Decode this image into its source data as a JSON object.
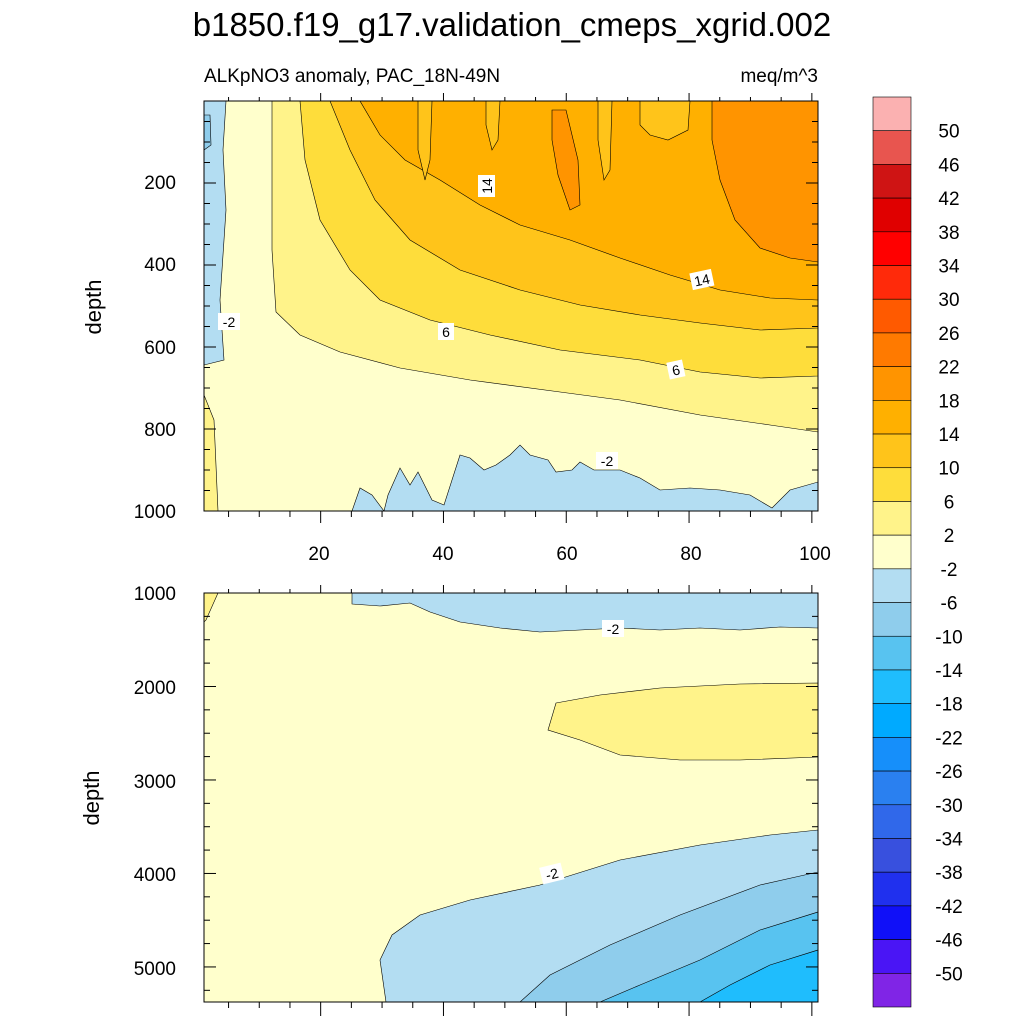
{
  "chart_data": {
    "type": "contour",
    "title": "b1850.f19_g17.validation_cmeps_xgrid.002",
    "subtitle_left": "ALKpNO3 anomaly, PAC_18N-49N",
    "subtitle_right": "meq/m^3",
    "ylabel": "depth",
    "top_panel": {
      "ylim": [
        1000,
        0
      ],
      "xlim": [
        1,
        101
      ],
      "y_ticks": [
        "200",
        "400",
        "600",
        "800",
        "1000"
      ],
      "x_ticks": [
        "20",
        "40",
        "60",
        "80",
        "100"
      ],
      "contour_labels": [
        "14",
        "14",
        "-2",
        "6",
        "6",
        "-2"
      ]
    },
    "bottom_panel": {
      "ylim": [
        5375,
        1000
      ],
      "y_ticks": [
        "1000",
        "2000",
        "3000",
        "4000",
        "5000"
      ],
      "contour_labels": [
        "-2",
        "-2"
      ]
    },
    "colorbar": {
      "labels": [
        "50",
        "46",
        "42",
        "38",
        "34",
        "30",
        "26",
        "22",
        "18",
        "14",
        "10",
        "6",
        "2",
        "-2",
        "-6",
        "-10",
        "-14",
        "-18",
        "-22",
        "-26",
        "-30",
        "-34",
        "-38",
        "-42",
        "-46",
        "-50"
      ],
      "colors": [
        "#fbb1b1",
        "#e8554f",
        "#cf1414",
        "#e00000",
        "#ff0000",
        "#ff2a0a",
        "#ff5a00",
        "#ff7a00",
        "#ff9400",
        "#ffb000",
        "#ffc41a",
        "#fedd3b",
        "#fff38a",
        "#ffffcc",
        "#b3ddf2",
        "#8fcdec",
        "#58c3f0",
        "#1fbdfd",
        "#00aaff",
        "#168ffa",
        "#2a80f0",
        "#3068ea",
        "#3850de",
        "#2030ee",
        "#1010f8",
        "#4a15f5",
        "#8025e6"
      ]
    }
  }
}
